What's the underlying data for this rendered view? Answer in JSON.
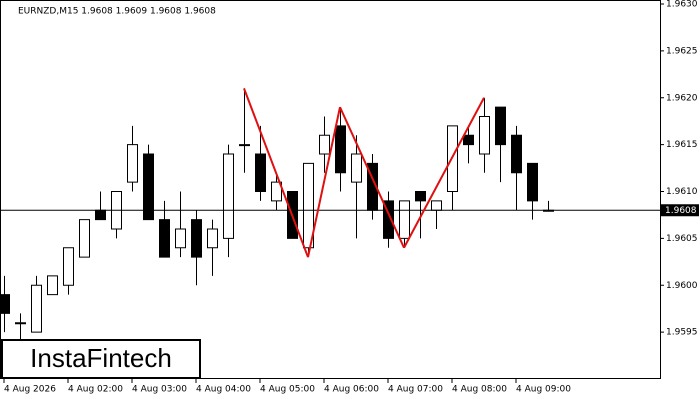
{
  "chart_data": {
    "type": "candlestick",
    "title": "EURNZD,M15  1.9608 1.9609 1.9608 1.9608",
    "categories": [
      "4 Aug 2026",
      null,
      null,
      null,
      "4 Aug 02:00",
      null,
      null,
      null,
      "4 Aug 03:00",
      null,
      null,
      null,
      "4 Aug 04:00",
      null,
      null,
      null,
      "4 Aug 05:00",
      null,
      null,
      null,
      "4 Aug 06:00",
      null,
      null,
      null,
      "4 Aug 07:00",
      null,
      null,
      null,
      "4 Aug 08:00",
      null,
      null,
      null,
      "4 Aug 09:00",
      null,
      null
    ],
    "open": [
      1.9599,
      1.9596,
      1.9595,
      1.9599,
      1.96,
      1.9603,
      1.9608,
      1.9606,
      1.9611,
      1.9614,
      1.9607,
      1.9604,
      1.9607,
      1.9604,
      1.9605,
      1.9615,
      1.9614,
      1.9609,
      1.961,
      1.9604,
      1.9614,
      1.9617,
      1.9611,
      1.9613,
      1.9609,
      1.9605,
      1.961,
      1.9608,
      1.961,
      1.9616,
      1.9614,
      1.9619,
      1.9616,
      1.9613,
      1.9608
    ],
    "high": [
      1.9601,
      1.9597,
      1.9601,
      1.9601,
      1.9604,
      1.9607,
      1.961,
      1.961,
      1.9617,
      1.9615,
      1.9609,
      1.961,
      1.9608,
      1.9607,
      1.9615,
      1.9621,
      1.9617,
      1.9612,
      1.961,
      1.9613,
      1.9618,
      1.9619,
      1.9616,
      1.9614,
      1.961,
      1.9609,
      1.961,
      1.9609,
      1.9617,
      1.9617,
      1.962,
      1.9619,
      1.9617,
      1.9613,
      1.9609
    ],
    "low": [
      1.9595,
      1.9594,
      1.9595,
      1.9599,
      1.9599,
      1.9603,
      1.9607,
      1.9605,
      1.961,
      1.9607,
      1.9603,
      1.9603,
      1.96,
      1.9601,
      1.9603,
      1.9612,
      1.9609,
      1.9608,
      1.9605,
      1.9603,
      1.9612,
      1.961,
      1.9605,
      1.9607,
      1.9604,
      1.9604,
      1.9605,
      1.9606,
      1.9608,
      1.9613,
      1.9612,
      1.9611,
      1.9608,
      1.9607,
      1.9608
    ],
    "close": [
      1.9597,
      1.9596,
      1.96,
      1.9601,
      1.9604,
      1.9607,
      1.9607,
      1.961,
      1.9615,
      1.9607,
      1.9603,
      1.9606,
      1.9603,
      1.9606,
      1.9614,
      1.9615,
      1.961,
      1.9611,
      1.9605,
      1.9613,
      1.9616,
      1.9612,
      1.9614,
      1.9608,
      1.9605,
      1.9609,
      1.9609,
      1.9609,
      1.9617,
      1.9615,
      1.9618,
      1.9615,
      1.9612,
      1.9609,
      1.9608
    ],
    "pattern": {
      "color": "#e01010",
      "values": [
        null,
        null,
        null,
        null,
        null,
        null,
        null,
        null,
        null,
        null,
        null,
        null,
        null,
        null,
        null,
        1.9621,
        null,
        null,
        null,
        1.9603,
        null,
        1.9619,
        null,
        null,
        null,
        1.9604,
        null,
        null,
        null,
        null,
        1.962,
        null,
        null,
        null,
        null
      ]
    },
    "current_price": 1.9608,
    "ylim": [
      1.959,
      1.963
    ],
    "yticks": [
      1.9595,
      {
        "value": 1.96,
        "label": "1.9600"
      },
      1.9605,
      {
        "value": 1.961,
        "label": "1.9610"
      },
      1.9615,
      {
        "value": 1.962,
        "label": "1.9620"
      },
      1.9625,
      {
        "value": 1.963,
        "label": "1.9630"
      }
    ],
    "watermark": "InstaFintech"
  }
}
